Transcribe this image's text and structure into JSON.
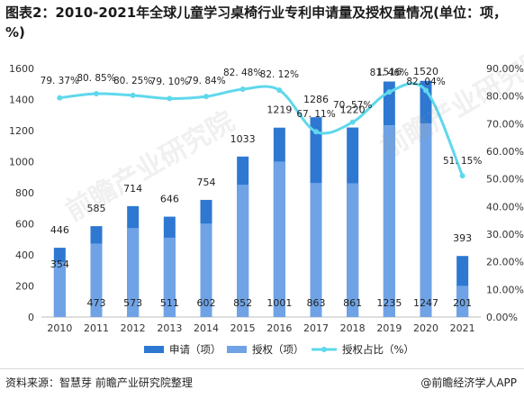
{
  "title": "图表2：2010-2021年全球儿童学习桌椅行业专利申请量及授权量情况(单位：项，%)",
  "footer": {
    "source": "资料来源：智慧芽 前瞻产业研究院整理",
    "credit": "@前瞻经济学人APP"
  },
  "watermark": {
    "text": "前瞻产业研究院"
  },
  "colors": {
    "apply": "#2e78d2",
    "grant": "#6fa3e6",
    "ratio": "#5fd8ec"
  },
  "chart_data": {
    "type": "bar",
    "categories": [
      "2010",
      "2011",
      "2012",
      "2013",
      "2014",
      "2015",
      "2016",
      "2017",
      "2018",
      "2019",
      "2020",
      "2021"
    ],
    "series": [
      {
        "name": "申请（项）",
        "kind": "bar",
        "axis": "left",
        "values": [
          446,
          585,
          714,
          646,
          754,
          1033,
          1219,
          1286,
          1220,
          1516,
          1520,
          393
        ],
        "labels": [
          "446",
          "585",
          "714",
          "646",
          "754",
          "1033",
          "1219",
          "1286",
          "1220",
          "1516",
          "1520",
          "393"
        ]
      },
      {
        "name": "授权（项）",
        "kind": "bar",
        "axis": "left",
        "values": [
          354,
          473,
          573,
          511,
          602,
          852,
          1001,
          863,
          861,
          1235,
          1247,
          201
        ],
        "labels": [
          "354",
          "473",
          "573",
          "511",
          "602",
          "852",
          "1001",
          "863",
          "861",
          "1235",
          "1247",
          "201"
        ]
      },
      {
        "name": "授权占比（%）",
        "kind": "line",
        "axis": "right",
        "values": [
          79.37,
          80.85,
          80.25,
          79.1,
          79.84,
          82.48,
          82.12,
          67.11,
          70.57,
          81.46,
          82.04,
          51.15
        ],
        "labels": [
          "79. 37%",
          "80. 85%",
          "80. 25%",
          "79. 10%",
          "79. 84%",
          "82. 48%",
          "82. 12%",
          "67. 11%",
          "70. 57%",
          "81. 46%",
          "82. 04%",
          "51. 15%"
        ]
      }
    ],
    "y_left": {
      "min": 0,
      "max": 1600,
      "ticks": [
        "0",
        "200",
        "400",
        "600",
        "800",
        "1000",
        "1200",
        "1400",
        "1600"
      ]
    },
    "y_right": {
      "min": 0,
      "max": 90,
      "ticks": [
        "0.00%",
        "10.00%",
        "20.00%",
        "30.00%",
        "40.00%",
        "50.00%",
        "60.00%",
        "70.00%",
        "80.00%",
        "90.00%"
      ]
    },
    "grid": false,
    "legend_position": "bottom"
  }
}
